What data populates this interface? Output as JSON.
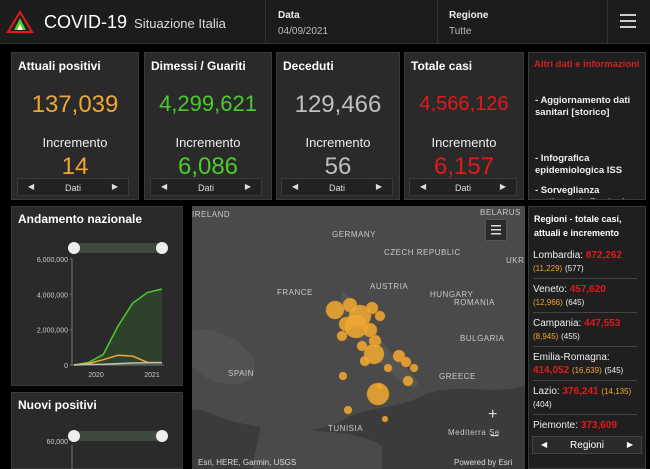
{
  "header": {
    "title": "COVID-19",
    "subtitle": "Situazione Italia",
    "date_label": "Data",
    "date_value": "04/09/2021",
    "region_label": "Regione",
    "region_value": "Tutte"
  },
  "cards": [
    {
      "title": "Attuali positivi",
      "value": "137,039",
      "inc_label": "Incremento",
      "inc_value": "14",
      "pager": "Dati",
      "color": "#f0a732"
    },
    {
      "title": "Dimessi / Guariti",
      "value": "4,299,621",
      "inc_label": "Incremento",
      "inc_value": "6,086",
      "pager": "Dati",
      "color": "#4ccb2d"
    },
    {
      "title": "Deceduti",
      "value": "129,466",
      "inc_label": "Incremento",
      "inc_value": "56",
      "pager": "Dati",
      "color": "#bfbfbf"
    },
    {
      "title": "Totale casi",
      "value": "4,566,126",
      "inc_label": "Incremento",
      "inc_value": "6,157",
      "pager": "Dati",
      "color": "#e21a1a"
    }
  ],
  "info": {
    "heading": "Altri dati e informazioni",
    "links": [
      "- Aggiornamento dati sanitari [storico]",
      "- Infografica epidemiologica ISS",
      "- Sorveglianza settimanale Regioni"
    ]
  },
  "trend_chart": {
    "title": "Andamento nazionale",
    "y_ticks": [
      "6,000,000",
      "4,000,000",
      "2,000,000",
      "0"
    ],
    "x_ticks": [
      "2020",
      "2021"
    ]
  },
  "new_positive_chart": {
    "title": "Nuovi positivi",
    "y_ticks": [
      "60,000"
    ]
  },
  "map": {
    "labels": [
      "IRELAND",
      "GERMANY",
      "CZECH REPUBLIC",
      "BELARUS",
      "FRANCE",
      "AUSTRIA",
      "HUNGARY",
      "ROMANIA",
      "BULGARIA",
      "SPAIN",
      "GREECE",
      "TUNISIA",
      "Mediterra Se",
      "UKR"
    ],
    "attribution": "Esri, HERE, Garmin, USGS",
    "powered": "Powered by Esri",
    "bubble_color": "#f0a732"
  },
  "regions": {
    "heading": "Regioni - totale casi, attuali e incremento",
    "items": [
      {
        "name": "Lombardia:",
        "total": "872,262",
        "active": "(11,229)",
        "inc": "(577)"
      },
      {
        "name": "Veneto:",
        "total": "457,620",
        "active": "(12,966)",
        "inc": "(645)"
      },
      {
        "name": "Campania:",
        "total": "447,553",
        "active": "(8,945)",
        "inc": "(455)"
      },
      {
        "name": "Emilia-Romagna:",
        "total": "414,052",
        "active": "(16,639)",
        "inc": "(545)"
      },
      {
        "name": "Lazio:",
        "total": "376,241",
        "active": "(14,135)",
        "inc": "(404)"
      },
      {
        "name": "Piemonte:",
        "total": "373,609",
        "active": "",
        "inc": ""
      }
    ],
    "pager": "Regioni"
  },
  "chart_data": [
    {
      "type": "line",
      "title": "Andamento nazionale",
      "x": [
        "2020-02",
        "2020-06",
        "2020-10",
        "2021-01",
        "2021-04",
        "2021-07",
        "2021-09"
      ],
      "series": [
        {
          "values": [
            0,
            150000,
            600000,
            2200000,
            3500000,
            4100000,
            4300000
          ],
          "color": "#4ccb2d"
        },
        {
          "values": [
            0,
            90000,
            300000,
            550000,
            500000,
            150000,
            137000
          ],
          "color": "#f0a732"
        },
        {
          "values": [
            0,
            35000,
            40000,
            80000,
            110000,
            127000,
            129000
          ],
          "color": "#bfbfbf"
        }
      ],
      "ylim": [
        0,
        6000000
      ]
    },
    {
      "type": "line",
      "title": "Nuovi positivi",
      "series": [],
      "ylim": [
        0,
        60000
      ]
    }
  ]
}
